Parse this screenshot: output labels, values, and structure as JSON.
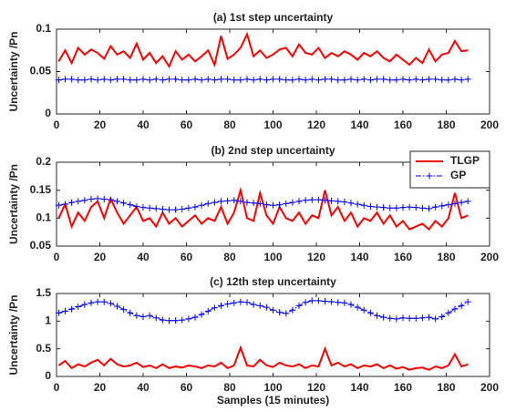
{
  "chart_data": [
    {
      "type": "line",
      "title": "(a) 1st step uncertainty",
      "ylabel": "Uncertainty /Pn",
      "xlim": [
        0,
        200
      ],
      "xticks": [
        0,
        20,
        40,
        60,
        80,
        100,
        120,
        140,
        160,
        180,
        200
      ],
      "ylim": [
        0,
        0.1
      ],
      "yticks": [
        0,
        0.05,
        0.1
      ],
      "x": [
        1,
        4,
        7,
        10,
        13,
        16,
        19,
        22,
        25,
        28,
        31,
        34,
        37,
        40,
        43,
        46,
        49,
        52,
        55,
        58,
        61,
        64,
        67,
        70,
        73,
        76,
        79,
        82,
        85,
        88,
        91,
        94,
        97,
        100,
        103,
        106,
        109,
        112,
        115,
        118,
        121,
        124,
        127,
        130,
        133,
        136,
        139,
        142,
        145,
        148,
        151,
        154,
        157,
        160,
        163,
        166,
        169,
        172,
        175,
        178,
        181,
        184,
        187,
        190
      ],
      "series": [
        {
          "color": "#ff0000",
          "values": [
            0.062,
            0.075,
            0.06,
            0.078,
            0.07,
            0.076,
            0.072,
            0.065,
            0.08,
            0.07,
            0.074,
            0.066,
            0.083,
            0.064,
            0.072,
            0.06,
            0.068,
            0.056,
            0.074,
            0.064,
            0.07,
            0.062,
            0.068,
            0.075,
            0.058,
            0.092,
            0.065,
            0.07,
            0.078,
            0.094,
            0.068,
            0.075,
            0.066,
            0.07,
            0.076,
            0.078,
            0.068,
            0.082,
            0.072,
            0.07,
            0.078,
            0.066,
            0.072,
            0.068,
            0.074,
            0.07,
            0.064,
            0.072,
            0.068,
            0.074,
            0.066,
            0.062,
            0.07,
            0.064,
            0.058,
            0.066,
            0.06,
            0.076,
            0.062,
            0.07,
            0.072,
            0.086,
            0.074,
            0.075
          ]
        },
        {
          "color": "#0000ff",
          "marker": "+",
          "values": [
            0.04,
            0.041,
            0.041,
            0.04,
            0.04,
            0.041,
            0.04,
            0.041,
            0.04,
            0.041,
            0.041,
            0.04,
            0.04,
            0.041,
            0.04,
            0.041,
            0.04,
            0.041,
            0.041,
            0.04,
            0.04,
            0.041,
            0.04,
            0.041,
            0.04,
            0.041,
            0.041,
            0.04,
            0.04,
            0.041,
            0.04,
            0.041,
            0.04,
            0.041,
            0.041,
            0.04,
            0.04,
            0.041,
            0.04,
            0.041,
            0.04,
            0.041,
            0.041,
            0.04,
            0.04,
            0.041,
            0.04,
            0.041,
            0.04,
            0.041,
            0.041,
            0.04,
            0.04,
            0.041,
            0.04,
            0.041,
            0.04,
            0.041,
            0.041,
            0.04,
            0.04,
            0.041,
            0.04,
            0.041
          ]
        }
      ]
    },
    {
      "type": "line",
      "title": "(b) 2nd step uncertainty",
      "ylabel": "Uncertainty /Pn",
      "xlim": [
        0,
        200
      ],
      "xticks": [
        0,
        20,
        40,
        60,
        80,
        100,
        120,
        140,
        160,
        180,
        200
      ],
      "ylim": [
        0.05,
        0.2
      ],
      "yticks": [
        0.05,
        0.1,
        0.15,
        0.2
      ],
      "legend": "northeast",
      "x": [
        1,
        4,
        7,
        10,
        13,
        16,
        19,
        22,
        25,
        28,
        31,
        34,
        37,
        40,
        43,
        46,
        49,
        52,
        55,
        58,
        61,
        64,
        67,
        70,
        73,
        76,
        79,
        82,
        85,
        88,
        91,
        94,
        97,
        100,
        103,
        106,
        109,
        112,
        115,
        118,
        121,
        124,
        127,
        130,
        133,
        136,
        139,
        142,
        145,
        148,
        151,
        154,
        157,
        160,
        163,
        166,
        169,
        172,
        175,
        178,
        181,
        184,
        187,
        190
      ],
      "series": [
        {
          "name": "TLGP",
          "color": "#ff0000",
          "values": [
            0.1,
            0.125,
            0.085,
            0.11,
            0.095,
            0.12,
            0.13,
            0.1,
            0.135,
            0.11,
            0.09,
            0.105,
            0.12,
            0.095,
            0.1,
            0.085,
            0.11,
            0.09,
            0.1,
            0.085,
            0.095,
            0.105,
            0.09,
            0.1,
            0.095,
            0.12,
            0.09,
            0.11,
            0.15,
            0.1,
            0.095,
            0.145,
            0.105,
            0.09,
            0.12,
            0.1,
            0.095,
            0.11,
            0.09,
            0.105,
            0.1,
            0.15,
            0.105,
            0.12,
            0.095,
            0.11,
            0.085,
            0.1,
            0.095,
            0.11,
            0.09,
            0.105,
            0.085,
            0.095,
            0.08,
            0.085,
            0.09,
            0.08,
            0.095,
            0.085,
            0.1,
            0.145,
            0.1,
            0.105
          ]
        },
        {
          "name": "GP",
          "color": "#0000ff",
          "marker": "+",
          "values": [
            0.123,
            0.125,
            0.128,
            0.13,
            0.132,
            0.134,
            0.135,
            0.134,
            0.133,
            0.13,
            0.127,
            0.124,
            0.121,
            0.119,
            0.118,
            0.117,
            0.116,
            0.115,
            0.115,
            0.116,
            0.118,
            0.12,
            0.123,
            0.126,
            0.128,
            0.13,
            0.131,
            0.132,
            0.13,
            0.128,
            0.127,
            0.126,
            0.124,
            0.123,
            0.124,
            0.126,
            0.128,
            0.13,
            0.132,
            0.133,
            0.133,
            0.132,
            0.131,
            0.13,
            0.129,
            0.127,
            0.125,
            0.123,
            0.121,
            0.12,
            0.119,
            0.118,
            0.118,
            0.119,
            0.12,
            0.119,
            0.118,
            0.117,
            0.12,
            0.122,
            0.124,
            0.126,
            0.128,
            0.13
          ]
        }
      ]
    },
    {
      "type": "line",
      "title": "(c) 12th step uncertainty",
      "ylabel": "Uncertainty /Pn",
      "xlabel": "Samples (15 minutes)",
      "xlim": [
        0,
        200
      ],
      "xticks": [
        0,
        20,
        40,
        60,
        80,
        100,
        120,
        140,
        160,
        180,
        200
      ],
      "ylim": [
        0,
        1.5
      ],
      "yticks": [
        0,
        0.5,
        1,
        1.5
      ],
      "x": [
        1,
        4,
        7,
        10,
        13,
        16,
        19,
        22,
        25,
        28,
        31,
        34,
        37,
        40,
        43,
        46,
        49,
        52,
        55,
        58,
        61,
        64,
        67,
        70,
        73,
        76,
        79,
        82,
        85,
        88,
        91,
        94,
        97,
        100,
        103,
        106,
        109,
        112,
        115,
        118,
        121,
        124,
        127,
        130,
        133,
        136,
        139,
        142,
        145,
        148,
        151,
        154,
        157,
        160,
        163,
        166,
        169,
        172,
        175,
        178,
        181,
        184,
        187,
        190
      ],
      "series": [
        {
          "color": "#ff0000",
          "values": [
            0.2,
            0.28,
            0.15,
            0.22,
            0.18,
            0.25,
            0.3,
            0.2,
            0.32,
            0.22,
            0.18,
            0.2,
            0.25,
            0.17,
            0.2,
            0.15,
            0.22,
            0.15,
            0.18,
            0.16,
            0.2,
            0.18,
            0.15,
            0.2,
            0.18,
            0.25,
            0.15,
            0.2,
            0.52,
            0.2,
            0.18,
            0.3,
            0.2,
            0.17,
            0.25,
            0.2,
            0.18,
            0.22,
            0.15,
            0.2,
            0.18,
            0.5,
            0.2,
            0.25,
            0.18,
            0.22,
            0.15,
            0.2,
            0.18,
            0.22,
            0.15,
            0.2,
            0.14,
            0.17,
            0.12,
            0.15,
            0.16,
            0.12,
            0.18,
            0.15,
            0.2,
            0.4,
            0.18,
            0.22
          ]
        },
        {
          "color": "#0000ff",
          "marker": "+",
          "values": [
            1.15,
            1.18,
            1.22,
            1.26,
            1.3,
            1.33,
            1.35,
            1.35,
            1.32,
            1.27,
            1.21,
            1.15,
            1.1,
            1.08,
            1.1,
            1.06,
            1.02,
            1.01,
            1.01,
            1.02,
            1.04,
            1.07,
            1.12,
            1.18,
            1.24,
            1.28,
            1.31,
            1.33,
            1.35,
            1.34,
            1.3,
            1.28,
            1.25,
            1.2,
            1.16,
            1.14,
            1.2,
            1.28,
            1.34,
            1.37,
            1.37,
            1.36,
            1.35,
            1.34,
            1.33,
            1.3,
            1.25,
            1.2,
            1.15,
            1.1,
            1.07,
            1.05,
            1.04,
            1.06,
            1.05,
            1.05,
            1.06,
            1.07,
            1.04,
            1.08,
            1.15,
            1.22,
            1.28,
            1.35
          ]
        }
      ]
    }
  ]
}
